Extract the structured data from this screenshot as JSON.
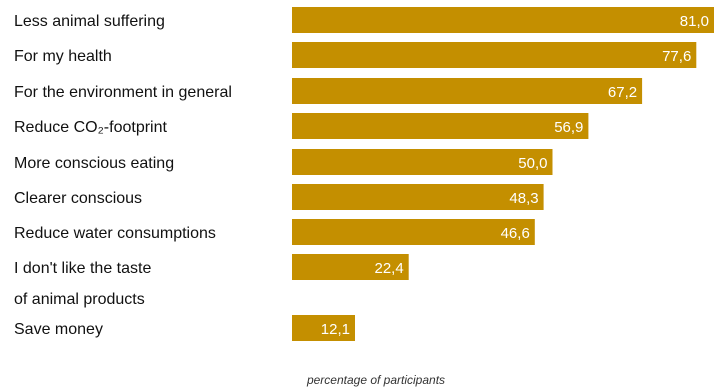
{
  "chart_data": {
    "type": "bar",
    "orientation": "horizontal",
    "categories": [
      [
        "Less animal suffering"
      ],
      [
        "For my health"
      ],
      [
        "For the environment in general"
      ],
      [
        "Reduce CO₂-footprint"
      ],
      [
        "More conscious eating"
      ],
      [
        "Clearer conscious"
      ],
      [
        "Reduce water consumptions"
      ],
      [
        "I don't like the taste",
        "of animal products"
      ],
      [
        "Save money"
      ]
    ],
    "values": [
      81.0,
      77.6,
      67.2,
      56.9,
      50.0,
      48.3,
      46.6,
      22.4,
      12.1
    ],
    "value_labels": [
      "81,0",
      "77,6",
      "67,2",
      "56,9",
      "50,0",
      "48,3",
      "46,6",
      "22,4",
      "12,1"
    ],
    "xlabel": "percentage of participants",
    "xlim": [
      0,
      81
    ],
    "grid": false,
    "bar_color": "#c48f00",
    "value_label_color": "#ffffff"
  }
}
